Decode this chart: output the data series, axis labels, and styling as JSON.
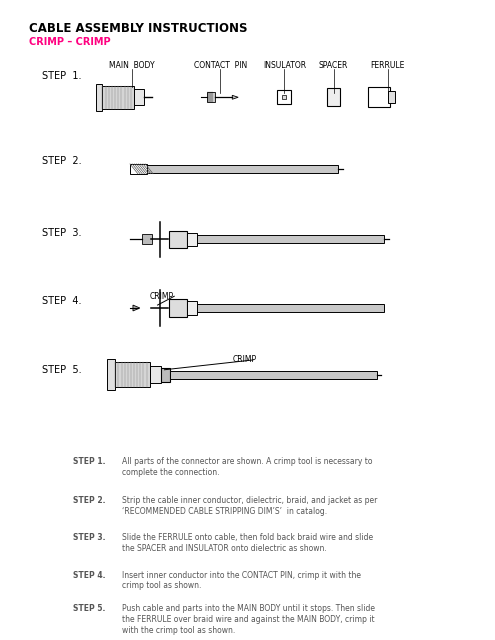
{
  "title": "CABLE ASSEMBLY INSTRUCTIONS",
  "subtitle": "CRIMP – CRIMP",
  "subtitle_color": "#FF0080",
  "background_color": "#ffffff",
  "text_color": "#000000",
  "step_labels": [
    "STEP  1.",
    "STEP  2.",
    "STEP  3.",
    "STEP  4.",
    "STEP  5."
  ],
  "step1_labels": [
    "MAIN  BODY",
    "CONTACT  PIN",
    "INSULATOR",
    "SPACER",
    "FERRULE"
  ],
  "instructions": [
    [
      "STEP 1.",
      "All parts of the connector are shown. A crimp tool is necessary to\ncomplete the connection."
    ],
    [
      "STEP 2.",
      "Strip the cable inner conductor, dielectric, braid, and jacket as per\n‘RECOMMENDED CABLE STRIPPING DIM’S’  in catalog."
    ],
    [
      "STEP 3.",
      "Slide the FERRULE onto cable, then fold back braid wire and slide\nthe SPACER and INSULATOR onto dielectric as shown."
    ],
    [
      "STEP 4.",
      "Insert inner conductor into the CONTACT PIN, crimp it with the\ncrimp tool as shown."
    ],
    [
      "STEP 5.",
      "Push cable and parts into the MAIN BODY until it stops. Then slide\nthe FERRULE over braid wire and against the MAIN BODY, crimp it\nwith the crimp tool as shown."
    ]
  ]
}
